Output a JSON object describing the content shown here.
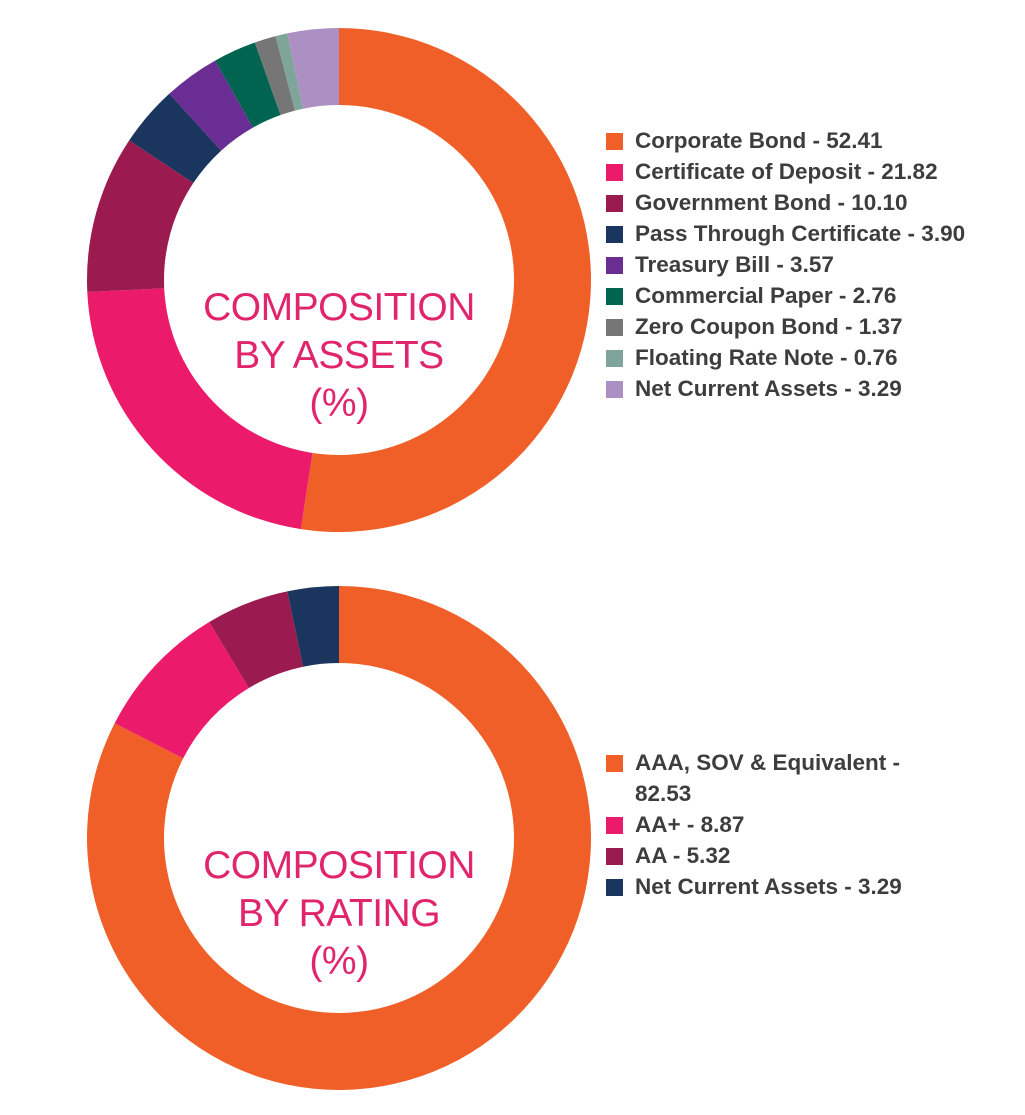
{
  "chart_data": [
    {
      "type": "pie",
      "donut": true,
      "title": [
        "COMPOSITION",
        "BY ASSETS",
        "(%)"
      ],
      "categories": [
        "Corporate Bond",
        "Certificate of Deposit",
        "Government Bond",
        "Pass Through Certificate",
        "Treasury Bill",
        "Commercial Paper",
        "Zero Coupon Bond",
        "Floating Rate Note",
        "Net Current Assets"
      ],
      "values": [
        52.41,
        21.82,
        10.1,
        3.9,
        3.57,
        2.76,
        1.37,
        0.76,
        3.29
      ],
      "colors": [
        "#f05f28",
        "#ec1a6a",
        "#9b1a4f",
        "#1b365e",
        "#6a2d93",
        "#006450",
        "#767676",
        "#7fa59a",
        "#ad90c3"
      ],
      "legend": [
        "Corporate Bond - 52.41",
        "Certificate of Deposit - 21.82",
        "Government Bond - 10.10",
        "Pass Through Certificate - 3.90",
        "Treasury Bill - 3.57",
        "Commercial Paper - 2.76",
        "Zero Coupon Bond - 1.37",
        "Floating Rate Note - 0.76",
        "Net Current Assets - 3.29"
      ],
      "legend_position": "right"
    },
    {
      "type": "pie",
      "donut": true,
      "title": [
        "COMPOSITION",
        "BY RATING",
        "(%)"
      ],
      "categories": [
        "AAA, SOV & Equivalent",
        "AA+",
        "AA",
        "Net Current Assets"
      ],
      "values": [
        82.53,
        8.87,
        5.32,
        3.29
      ],
      "colors": [
        "#f05f28",
        "#ec1a6a",
        "#9b1a4f",
        "#1b365e"
      ],
      "legend": [
        "AAA, SOV & Equivalent - 82.53",
        "AA+ - 8.87",
        "AA - 5.32",
        "Net Current Assets - 3.29"
      ],
      "legend_position": "right"
    }
  ]
}
